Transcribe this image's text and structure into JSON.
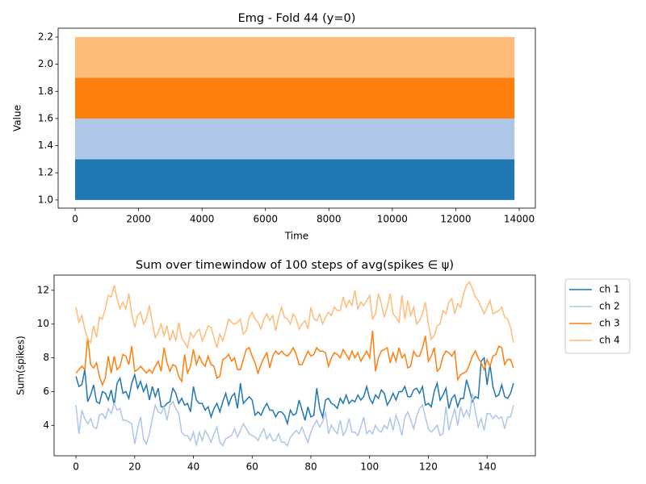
{
  "chart_data": [
    {
      "type": "band",
      "title": "Emg - Fold 44 (y=0)",
      "x_label": "Time",
      "y_label": "Value",
      "x": [
        0,
        13850
      ],
      "series": [
        {
          "color": "#1f77b4",
          "values": [
            1.0,
            1.3
          ]
        },
        {
          "color": "#aec7e8",
          "values": [
            1.3,
            1.6
          ]
        },
        {
          "color": "#ff7f0e",
          "values": [
            1.6,
            1.9
          ]
        },
        {
          "color": "#ffbb78",
          "values": [
            1.9,
            2.2
          ]
        }
      ],
      "xlim": [
        -535,
        14509
      ],
      "ylim": [
        0.94,
        2.265
      ],
      "xticks": [
        0,
        2000,
        4000,
        6000,
        8000,
        10000,
        12000,
        14000
      ],
      "yticks": [
        {
          "value": 1,
          "label": "1.0"
        },
        1.2,
        1.4,
        1.6,
        1.8,
        {
          "value": 2,
          "label": "2.0"
        },
        2.2
      ]
    },
    {
      "type": "line",
      "title": "Sum over timewindow of 100 steps of avg(spikes ∈ ψ)",
      "y_label": "Sum(spikes)",
      "legend": "outside upper right",
      "x": [
        0,
        1,
        2,
        3,
        4,
        5,
        6,
        7,
        8,
        9,
        10,
        11,
        12,
        13,
        14,
        15,
        16,
        17,
        18,
        19,
        20,
        21,
        22,
        23,
        24,
        25,
        26,
        27,
        28,
        29,
        30,
        31,
        32,
        33,
        34,
        35,
        36,
        37,
        38,
        39,
        40,
        41,
        42,
        43,
        44,
        45,
        46,
        47,
        48,
        49,
        50,
        51,
        52,
        53,
        54,
        55,
        56,
        57,
        58,
        59,
        60,
        61,
        62,
        63,
        64,
        65,
        66,
        67,
        68,
        69,
        70,
        71,
        72,
        73,
        74,
        75,
        76,
        77,
        78,
        79,
        80,
        81,
        82,
        83,
        84,
        85,
        86,
        87,
        88,
        89,
        90,
        91,
        92,
        93,
        94,
        95,
        96,
        97,
        98,
        99,
        100,
        101,
        102,
        103,
        104,
        105,
        106,
        107,
        108,
        109,
        110,
        111,
        112,
        113,
        114,
        115,
        116,
        117,
        118,
        119,
        120,
        121,
        122,
        123,
        124,
        125,
        126,
        127,
        128,
        129,
        130,
        131,
        132,
        133,
        134,
        135,
        136,
        137,
        138,
        139,
        140,
        141,
        142,
        143,
        144,
        145,
        146,
        147,
        148,
        149
      ],
      "series": [
        {
          "name": "ch 1",
          "color": "#1f77b4",
          "values": [
            6.9,
            6.3,
            6.4,
            7.3,
            5.4,
            5.8,
            6.4,
            5.4,
            5.3,
            6.0,
            5.9,
            5.5,
            6.1,
            5.2,
            6.5,
            6.8,
            5.9,
            6.0,
            5.6,
            6.5,
            7.0,
            6.2,
            6.6,
            6.0,
            6.4,
            5.5,
            6.3,
            5.7,
            6.2,
            5.1,
            5.1,
            5.3,
            5.4,
            6.2,
            5.9,
            5.3,
            5.6,
            5.2,
            5.3,
            4.8,
            6.3,
            5.5,
            5.3,
            5.3,
            4.9,
            5.1,
            4.5,
            5.0,
            5.3,
            4.8,
            5.4,
            5.9,
            5.2,
            5.7,
            5.9,
            5.0,
            6.5,
            5.3,
            5.5,
            5.7,
            5.5,
            4.6,
            4.8,
            4.6,
            5.0,
            5.3,
            4.9,
            4.9,
            4.5,
            4.8,
            4.8,
            4.6,
            4.1,
            4.9,
            4.6,
            4.7,
            5.5,
            4.9,
            4.3,
            5.1,
            4.5,
            4.6,
            6.2,
            5.0,
            4.5,
            5.5,
            5.6,
            5.3,
            5.2,
            5.0,
            5.6,
            5.3,
            5.8,
            5.3,
            5.5,
            5.4,
            5.8,
            5.5,
            5.7,
            6.3,
            5.6,
            5.3,
            5.8,
            5.6,
            6.1,
            5.9,
            5.2,
            5.5,
            5.9,
            5.5,
            6.0,
            6.0,
            6.3,
            5.7,
            5.7,
            6.1,
            6.2,
            5.9,
            6.3,
            5.2,
            5.3,
            5.1,
            6.0,
            6.5,
            5.5,
            5.8,
            6.2,
            5.0,
            5.6,
            5.8,
            5.1,
            5.6,
            5.6,
            6.7,
            6.1,
            5.4,
            5.7,
            5.6,
            7.8,
            8.0,
            6.4,
            7.6,
            6.3,
            5.7,
            5.8,
            6.4,
            5.7,
            5.6,
            5.9,
            6.5
          ]
        },
        {
          "name": "ch 2",
          "color": "#aec7e8",
          "values": [
            5.2,
            3.5,
            4.9,
            4.4,
            4.1,
            4.4,
            3.9,
            3.8,
            4.6,
            4.7,
            4.4,
            5.0,
            4.7,
            5.3,
            4.9,
            5.0,
            4.3,
            4.3,
            4.2,
            4.1,
            2.9,
            3.8,
            4.5,
            3.2,
            2.9,
            3.5,
            4.4,
            5.2,
            4.8,
            4.7,
            5.1,
            4.3,
            5.2,
            5.4,
            5.0,
            4.7,
            3.6,
            3.4,
            3.4,
            3.1,
            3.6,
            2.8,
            3.6,
            3.1,
            3.7,
            3.4,
            3.0,
            3.5,
            3.9,
            3.0,
            2.8,
            3.2,
            3.3,
            3.4,
            3.8,
            3.3,
            3.7,
            4.1,
            3.8,
            3.5,
            3.4,
            3.3,
            3.1,
            3.5,
            3.8,
            3.2,
            3.5,
            3.1,
            3.1,
            3.5,
            3.0,
            3.0,
            2.8,
            3.3,
            3.5,
            3.7,
            3.5,
            3.9,
            3.4,
            3.0,
            3.6,
            4.0,
            4.3,
            3.9,
            4.2,
            4.8,
            3.5,
            4.0,
            3.7,
            3.5,
            4.3,
            3.4,
            3.7,
            4.4,
            3.6,
            3.6,
            3.4,
            3.9,
            4.5,
            3.5,
            3.7,
            3.5,
            4.0,
            3.7,
            3.6,
            4.0,
            3.8,
            4.4,
            3.7,
            4.6,
            4.1,
            3.4,
            4.5,
            4.8,
            4.3,
            3.8,
            4.5,
            5.0,
            5.2,
            4.5,
            3.8,
            3.6,
            3.8,
            4.0,
            3.4,
            3.5,
            5.1,
            3.7,
            4.4,
            5.0,
            4.0,
            5.1,
            4.5,
            4.9,
            4.5,
            5.9,
            4.8,
            3.9,
            4.4,
            3.7,
            4.7,
            4.7,
            4.4,
            4.6,
            4.4,
            4.5,
            3.8,
            4.5,
            4.5,
            5.2
          ]
        },
        {
          "name": "ch 3",
          "color": "#ff7f0e",
          "values": [
            7.1,
            7.3,
            7.5,
            7.3,
            9.2,
            7.6,
            7.4,
            7.7,
            6.9,
            6.4,
            6.8,
            8.1,
            7.1,
            8.1,
            7.3,
            7.5,
            8.2,
            8.1,
            7.6,
            8.7,
            7.2,
            7.3,
            7.5,
            7.3,
            7.1,
            7.3,
            7.1,
            7.5,
            7.8,
            7.2,
            8.6,
            7.7,
            7.2,
            7.6,
            7.5,
            6.9,
            6.6,
            8.2,
            7.1,
            7.5,
            8.5,
            7.6,
            8.1,
            7.7,
            7.5,
            8.1,
            7.6,
            7.5,
            6.8,
            6.9,
            7.9,
            8.0,
            8.2,
            7.8,
            8.0,
            7.3,
            7.3,
            7.9,
            8.5,
            8.6,
            8.1,
            7.7,
            7.1,
            7.6,
            8.0,
            8.3,
            7.4,
            8.1,
            8.4,
            8.2,
            8.4,
            8.2,
            8.1,
            8.3,
            8.6,
            8.2,
            7.6,
            7.6,
            8.0,
            8.4,
            8.1,
            8.2,
            8.6,
            8.4,
            8.4,
            8.3,
            7.5,
            8.0,
            8.3,
            8.2,
            8.0,
            8.5,
            8.2,
            7.9,
            8.4,
            8.0,
            8.3,
            7.8,
            8.1,
            8.4,
            8.0,
            9.6,
            7.2,
            8.0,
            8.4,
            8.5,
            8.6,
            7.7,
            8.3,
            7.8,
            8.6,
            8.0,
            8.2,
            7.4,
            7.5,
            8.4,
            8.1,
            8.1,
            8.6,
            9.3,
            7.8,
            8.1,
            8.6,
            7.2,
            7.4,
            8.1,
            8.4,
            8.3,
            8.1,
            8.4,
            6.7,
            7.0,
            7.1,
            7.2,
            7.6,
            8.1,
            8.4,
            8.0,
            7.7,
            7.3,
            7.9,
            7.5,
            8.1,
            8.2,
            8.7,
            8.6,
            7.6,
            7.9,
            7.9,
            7.4
          ]
        },
        {
          "name": "ch 4",
          "color": "#ffbb78",
          "values": [
            11.0,
            10.1,
            10.5,
            9.7,
            9.1,
            8.9,
            9.9,
            9.2,
            10.4,
            10.3,
            10.9,
            11.7,
            11.6,
            12.3,
            11.5,
            10.9,
            11.3,
            10.9,
            11.8,
            10.6,
            9.8,
            10.5,
            10.7,
            10.0,
            10.3,
            11.1,
            10.1,
            9.2,
            9.5,
            10.0,
            9.3,
            9.9,
            9.0,
            9.6,
            9.0,
            10.1,
            9.2,
            8.9,
            8.6,
            9.5,
            9.2,
            9.5,
            9.7,
            9.0,
            9.4,
            9.9,
            9.8,
            9.2,
            8.6,
            9.4,
            9.0,
            9.6,
            10.3,
            10.1,
            10.0,
            10.1,
            10.3,
            9.4,
            9.6,
            10.4,
            10.7,
            10.3,
            10.1,
            9.7,
            10.3,
            10.6,
            10.2,
            10.5,
            9.6,
            10.4,
            11.0,
            10.4,
            10.3,
            10.0,
            10.6,
            10.3,
            9.7,
            10.0,
            10.2,
            9.7,
            11.0,
            10.3,
            10.2,
            10.6,
            10.0,
            10.4,
            10.7,
            10.5,
            11.0,
            10.8,
            10.8,
            11.6,
            11.0,
            11.4,
            11.1,
            12.0,
            10.9,
            11.3,
            11.1,
            11.4,
            11.7,
            10.3,
            10.6,
            11.8,
            11.2,
            10.4,
            11.0,
            11.8,
            10.6,
            10.4,
            10.1,
            11.7,
            10.3,
            11.4,
            10.5,
            11.0,
            10.0,
            10.2,
            10.6,
            11.3,
            10.0,
            9.1,
            9.3,
            9.9,
            10.0,
            10.8,
            10.6,
            11.3,
            11.5,
            10.6,
            11.2,
            11.0,
            11.8,
            12.3,
            12.5,
            12.1,
            11.6,
            11.4,
            11.0,
            10.6,
            11.0,
            11.4,
            10.6,
            10.7,
            10.8,
            11.0,
            10.4,
            10.3,
            9.8,
            8.9
          ]
        }
      ],
      "xlim": [
        -7.45,
        156.45
      ],
      "ylim": [
        2.2,
        12.9
      ],
      "xticks": [
        0,
        20,
        40,
        60,
        80,
        100,
        120,
        140
      ],
      "yticks": [
        4,
        6,
        8,
        10,
        12
      ]
    }
  ]
}
